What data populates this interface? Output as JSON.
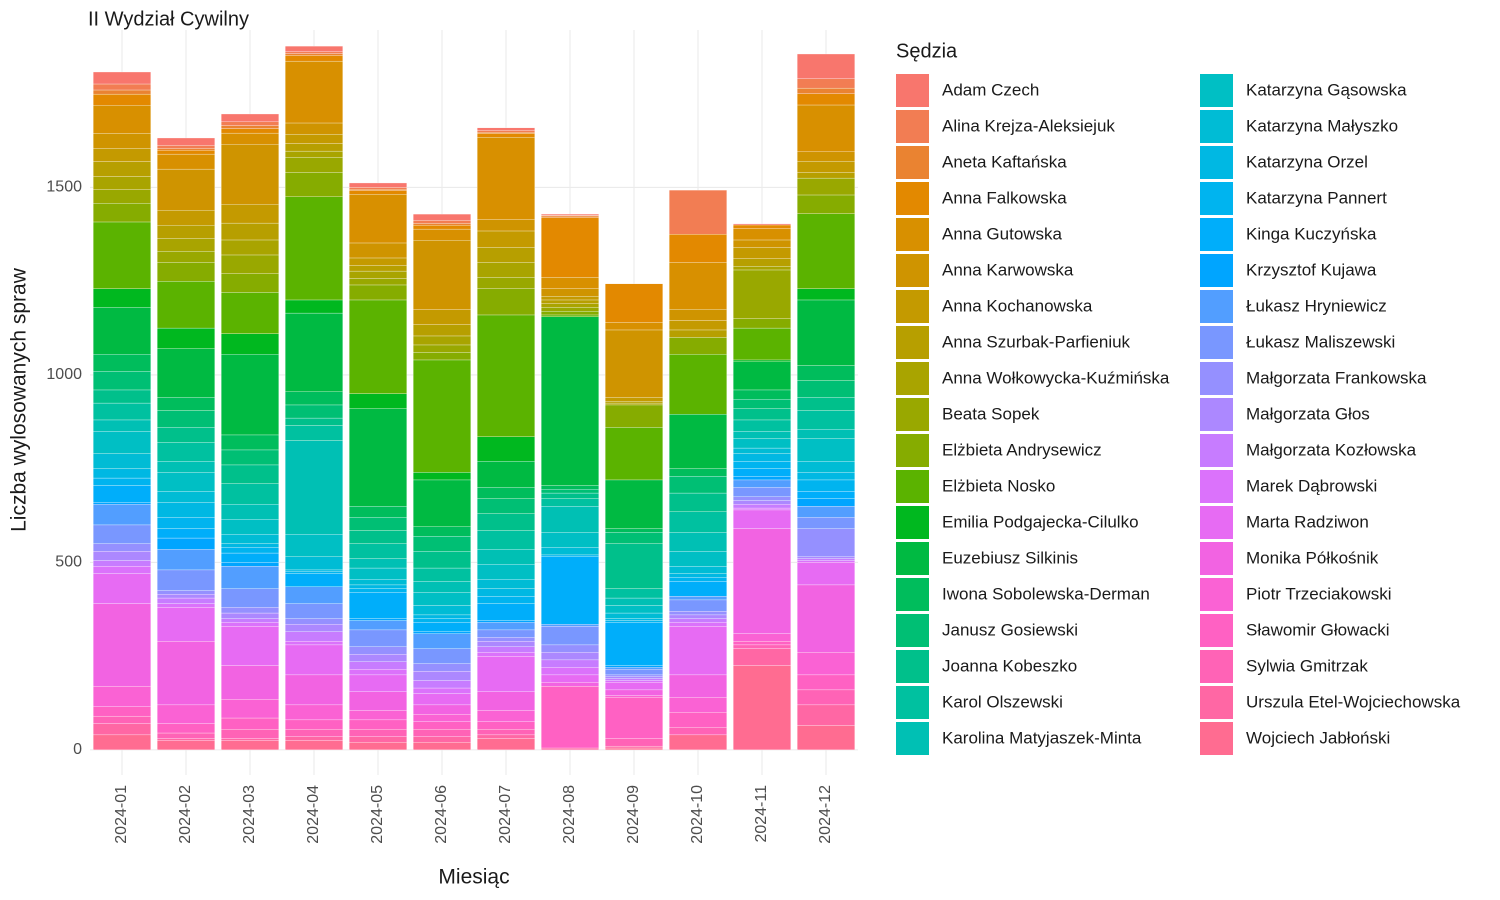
{
  "chart_data": {
    "type": "bar",
    "stacked": true,
    "title": "II Wydział Cywilny",
    "x_label": "Miesiąc",
    "y_label": "Liczba wylosowanych spraw",
    "legend_title": "Sędzia",
    "legend": "right",
    "grid": true,
    "categories": [
      "2024-01",
      "2024-02",
      "2024-03",
      "2024-04",
      "2024-05",
      "2024-06",
      "2024-07",
      "2024-08",
      "2024-09",
      "2024-10",
      "2024-11",
      "2024-12"
    ],
    "ylim": [
      -67,
      1920
    ],
    "yticks": [
      0,
      500,
      1000,
      1500
    ],
    "series": [
      {
        "name": "Adam Czech",
        "color": "#F8766D",
        "values": [
          32,
          20,
          21,
          15,
          12,
          17,
          7,
          3,
          0,
          0,
          3,
          66
        ]
      },
      {
        "name": "Alina Krejza-Aleksiejuk",
        "color": "#F27D53",
        "values": [
          16,
          8,
          10,
          5,
          5,
          8,
          5,
          2,
          0,
          118,
          0,
          25
        ]
      },
      {
        "name": "Aneta Kaftańska",
        "color": "#EA8331",
        "values": [
          11,
          5,
          8,
          5,
          3,
          5,
          3,
          4,
          0,
          0,
          0,
          15
        ]
      },
      {
        "name": "Anna Falkowska",
        "color": "#E38900",
        "values": [
          30,
          10,
          12,
          15,
          10,
          10,
          10,
          160,
          103,
          75,
          10,
          30
        ]
      },
      {
        "name": "Anna Gutowska",
        "color": "#D89000",
        "values": [
          75,
          40,
          30,
          165,
          130,
          30,
          220,
          30,
          20,
          125,
          30,
          125
        ]
      },
      {
        "name": "Anna Karwowska",
        "color": "#CF9400",
        "values": [
          40,
          110,
          160,
          30,
          40,
          185,
          30,
          20,
          180,
          30,
          20,
          25
        ]
      },
      {
        "name": "Anna Kochanowska",
        "color": "#C49A00",
        "values": [
          35,
          40,
          50,
          25,
          20,
          40,
          44,
          10,
          10,
          25,
          30,
          30
        ]
      },
      {
        "name": "Anna Szurbak-Parfieniuk",
        "color": "#B79F00",
        "values": [
          40,
          35,
          45,
          20,
          15,
          30,
          40,
          10,
          5,
          20,
          20,
          15
        ]
      },
      {
        "name": "Anna Wołkowycka-Kuźmińska",
        "color": "#A9A400",
        "values": [
          35,
          34,
          40,
          17,
          20,
          24,
          40,
          10,
          5,
          0,
          10,
          0
        ]
      },
      {
        "name": "Beata Sopek",
        "color": "#99A800",
        "values": [
          36,
          30,
          50,
          40,
          17,
          20,
          30,
          10,
          0,
          0,
          130,
          45
        ]
      },
      {
        "name": "Elżbieta Andrysewicz",
        "color": "#86AC00",
        "values": [
          50,
          50,
          50,
          65,
          40,
          20,
          70,
          10,
          60,
          45,
          25,
          50
        ]
      },
      {
        "name": "Elżbieta Nosko",
        "color": "#5BB300",
        "values": [
          178,
          125,
          110,
          275,
          250,
          300,
          325,
          5,
          140,
          160,
          85,
          200
        ]
      },
      {
        "name": "Emilia Podgajecka-Cilulko",
        "color": "#00B81F",
        "values": [
          50,
          55,
          55,
          35,
          40,
          20,
          65,
          0,
          0,
          0,
          5,
          30
        ]
      },
      {
        "name": "Euzebiusz Silkinis",
        "color": "#00BA42",
        "values": [
          125,
          130,
          215,
          210,
          260,
          125,
          70,
          450,
          130,
          145,
          75,
          175
        ]
      },
      {
        "name": "Iwona Sobolewska-Derman",
        "color": "#00BD5C",
        "values": [
          45,
          35,
          40,
          35,
          30,
          25,
          30,
          10,
          10,
          20,
          25,
          40
        ]
      },
      {
        "name": "Janusz Gosiewski",
        "color": "#00BF74",
        "values": [
          50,
          45,
          40,
          35,
          35,
          40,
          40,
          10,
          30,
          45,
          25,
          45
        ]
      },
      {
        "name": "Joanna Kobeszko",
        "color": "#00C08B",
        "values": [
          35,
          40,
          50,
          20,
          35,
          45,
          45,
          15,
          120,
          50,
          30,
          35
        ]
      },
      {
        "name": "Karol Olszewski",
        "color": "#00C1A0",
        "values": [
          45,
          50,
          55,
          40,
          40,
          35,
          50,
          20,
          25,
          55,
          30,
          50
        ]
      },
      {
        "name": "Karolina Matyjaszek-Minta",
        "color": "#00C0B4",
        "values": [
          30,
          30,
          40,
          250,
          25,
          30,
          40,
          70,
          20,
          50,
          20,
          25
        ]
      },
      {
        "name": "Katarzyna Gąsowska",
        "color": "#00BFC4",
        "values": [
          60,
          50,
          40,
          60,
          30,
          35,
          40,
          40,
          20,
          40,
          25,
          60
        ]
      },
      {
        "name": "Katarzyna Małyszko",
        "color": "#00BCD5",
        "values": [
          40,
          30,
          25,
          35,
          15,
          25,
          25,
          20,
          15,
          20,
          15,
          30
        ]
      },
      {
        "name": "Katarzyna Orzel",
        "color": "#00B8E3",
        "values": [
          25,
          40,
          10,
          5,
          10,
          10,
          20,
          0,
          5,
          10,
          20,
          20
        ]
      },
      {
        "name": "Katarzyna Pannert",
        "color": "#00B4EF",
        "values": [
          20,
          30,
          15,
          5,
          10,
          10,
          20,
          5,
          5,
          10,
          20,
          30
        ]
      },
      {
        "name": "Kinga Kuczyńska",
        "color": "#00AEFA",
        "values": [
          45,
          25,
          25,
          35,
          70,
          25,
          45,
          180,
          115,
          40,
          20,
          20
        ]
      },
      {
        "name": "Krzysztof Kujawa",
        "color": "#00A5FF",
        "values": [
          5,
          30,
          10,
          0,
          5,
          5,
          5,
          0,
          5,
          0,
          10,
          20
        ]
      },
      {
        "name": "Łukasz Hryniewicz",
        "color": "#529EFF",
        "values": [
          55,
          55,
          60,
          45,
          25,
          40,
          20,
          5,
          5,
          10,
          20,
          30
        ]
      },
      {
        "name": "Łukasz Maliszewski",
        "color": "#7997FF",
        "values": [
          50,
          55,
          50,
          40,
          45,
          40,
          20,
          50,
          15,
          30,
          25,
          30
        ]
      },
      {
        "name": "Małgorzata Frankowska",
        "color": "#9590FF",
        "values": [
          20,
          10,
          15,
          15,
          20,
          20,
          10,
          20,
          5,
          10,
          10,
          75
        ]
      },
      {
        "name": "Małgorzata Głos",
        "color": "#AC88FF",
        "values": [
          25,
          10,
          15,
          20,
          20,
          25,
          15,
          20,
          5,
          10,
          10,
          5
        ]
      },
      {
        "name": "Małgorzata Kozłowska",
        "color": "#C77CFF",
        "values": [
          15,
          15,
          10,
          25,
          20,
          20,
          15,
          20,
          5,
          10,
          10,
          5
        ]
      },
      {
        "name": "Marek Dąbrowski",
        "color": "#DB72FB",
        "values": [
          20,
          10,
          10,
          10,
          15,
          15,
          10,
          20,
          5,
          10,
          5,
          5
        ]
      },
      {
        "name": "Marta Radziwon",
        "color": "#E76BF3",
        "values": [
          80,
          90,
          105,
          80,
          45,
          30,
          95,
          20,
          20,
          130,
          50,
          60
        ]
      },
      {
        "name": "Monika Półkośnik",
        "color": "#F263E2",
        "values": [
          220,
          170,
          90,
          80,
          50,
          25,
          50,
          10,
          15,
          60,
          280,
          180
        ]
      },
      {
        "name": "Piotr Trzeciakowski",
        "color": "#FA62D4",
        "values": [
          55,
          50,
          50,
          40,
          25,
          20,
          30,
          0,
          5,
          40,
          20,
          60
        ]
      },
      {
        "name": "Sławomir Głowacki",
        "color": "#FF61C3",
        "values": [
          25,
          25,
          30,
          25,
          25,
          20,
          20,
          165,
          110,
          40,
          10,
          40
        ]
      },
      {
        "name": "Sylwia Gmitrzak",
        "color": "#FF63B6",
        "values": [
          20,
          15,
          25,
          20,
          20,
          20,
          15,
          0,
          20,
          20,
          10,
          40
        ]
      },
      {
        "name": "Urszula Etel-Wojciechowska",
        "color": "#FF67A4",
        "values": [
          30,
          5,
          5,
          10,
          15,
          15,
          10,
          5,
          5,
          0,
          45,
          55
        ]
      },
      {
        "name": "Wojciech Jabłoński",
        "color": "#FF6C91",
        "values": [
          40,
          25,
          25,
          25,
          20,
          20,
          30,
          0,
          5,
          40,
          225,
          65
        ]
      }
    ]
  }
}
